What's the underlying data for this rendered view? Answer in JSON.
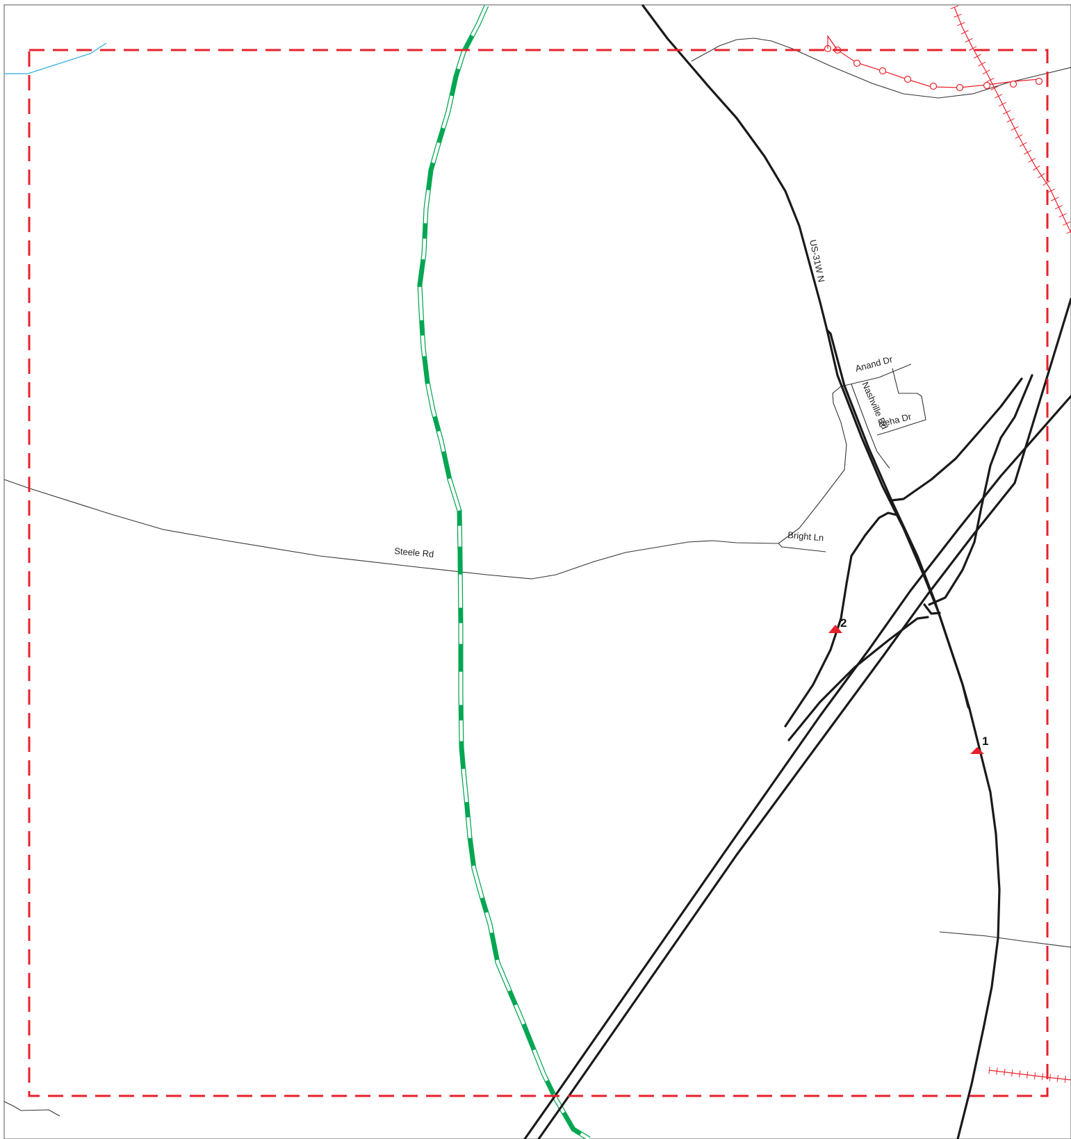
{
  "colors": {
    "primary_road": "#1a1a1a",
    "minor_road": "#333333",
    "greenway": "#00a651",
    "boundary": "#e8202a",
    "water": "#29abe2",
    "rail": "#e8202a",
    "marker": "#e8202a"
  },
  "boundary": {
    "style": "dashed",
    "color_ref": "boundary"
  },
  "road_labels": {
    "us31w": "US-31W N",
    "anand": "Anand Dr",
    "nashville": "Nashville Rd",
    "neha": "Neha Dr",
    "steele": "Steele Rd",
    "bright": "Bright Ln"
  },
  "markers": [
    {
      "id": "1",
      "symbol": "triangle"
    },
    {
      "id": "2",
      "symbol": "triangle"
    }
  ],
  "icons": {
    "marker": "red-triangle-icon",
    "rail": "railroad-track-icon",
    "greenway": "dashed-green-trail-icon"
  }
}
